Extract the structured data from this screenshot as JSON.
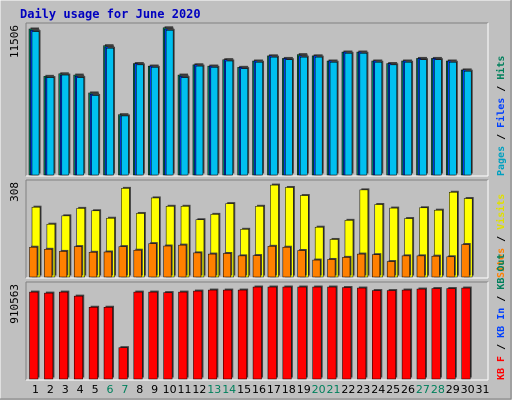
{
  "chart_data": {
    "type": "bar",
    "title": "Daily usage for June 2020",
    "categories": [
      "1",
      "2",
      "3",
      "4",
      "5",
      "6",
      "7",
      "8",
      "9",
      "10",
      "11",
      "12",
      "13",
      "14",
      "15",
      "16",
      "17",
      "18",
      "19",
      "20",
      "21",
      "22",
      "23",
      "24",
      "25",
      "26",
      "27",
      "28",
      "29",
      "30",
      "31"
    ],
    "weekend_days": [
      6,
      7,
      13,
      14,
      20,
      21,
      27,
      28
    ],
    "panels": [
      {
        "name": "hits-files-pages",
        "max_label": "11506",
        "ymax": 11506,
        "legend": [
          {
            "text": "Pages",
            "color": "#00a0c0"
          },
          {
            "text": "Files",
            "color": "#0040ff"
          },
          {
            "text": "Hits",
            "color": "#00805c"
          }
        ],
        "series": [
          {
            "name": "Hits",
            "color": "#00805c",
            "values": [
              11506,
              7800,
              8000,
              7900,
              6500,
              10200,
              4800,
              8800,
              8600,
              11600,
              7900,
              8700,
              8600,
              9100,
              8500,
              9000,
              9400,
              9200,
              9500,
              9400,
              9000,
              9700,
              9700,
              9000,
              8800,
              9000,
              9200,
              9200,
              9000,
              8300,
              0
            ]
          },
          {
            "name": "Files",
            "color": "#0040ff",
            "values": [
              11400,
              7700,
              7900,
              7800,
              6400,
              10100,
              4700,
              8800,
              8600,
              11500,
              7800,
              8700,
              8600,
              9100,
              8500,
              9000,
              9400,
              9200,
              9400,
              9400,
              9000,
              9700,
              9700,
              9000,
              8800,
              9000,
              9200,
              9200,
              9000,
              8300,
              0
            ]
          },
          {
            "name": "Pages",
            "color": "#00c0f0",
            "values": [
              11300,
              7700,
              7900,
              7700,
              6300,
              10000,
              4700,
              8700,
              8500,
              11400,
              7700,
              8600,
              8500,
              9000,
              8400,
              8900,
              9300,
              9100,
              9300,
              9300,
              8900,
              9600,
              9600,
              8900,
              8700,
              8900,
              9100,
              9100,
              8900,
              8200,
              0
            ]
          }
        ]
      },
      {
        "name": "visits-sites",
        "max_label": "308",
        "ymax": 308,
        "legend": [
          {
            "text": "Sites",
            "color": "#ff8000"
          },
          {
            "text": "Visits",
            "color": "#e0e000"
          }
        ],
        "series": [
          {
            "name": "Visits",
            "color": "#ffff00",
            "values": [
              237,
              180,
              208,
              233,
              225,
              200,
              300,
              216,
              268,
              240,
              240,
              195,
              213,
              249,
              163,
              240,
              311,
              303,
              276,
              170,
              129,
              193,
              295,
              246,
              234,
              199,
              235,
              227,
              287,
              266,
              0
            ]
          },
          {
            "name": "Sites",
            "color": "#ff8000",
            "values": [
              103,
              96,
              89,
              105,
              86,
              87,
              105,
              93,
              115,
              107,
              110,
              84,
              80,
              82,
              74,
              75,
              106,
              103,
              92,
              60,
              62,
              69,
              80,
              78,
              55,
              74,
              74,
              73,
              71,
              112,
              0
            ]
          }
        ]
      },
      {
        "name": "kbytes",
        "max_label": "910563",
        "ymax": 910563,
        "legend": [
          {
            "text": "KB F",
            "color": "#ff0000"
          },
          {
            "text": "KB In",
            "color": "#0040ff"
          },
          {
            "text": "KB Out",
            "color": "#00805c"
          }
        ],
        "series": [
          {
            "name": "KB F",
            "color": "#ff0000",
            "values": [
              870000,
              860000,
              870000,
              830000,
              720000,
              720000,
              320000,
              870000,
              870000,
              865000,
              870000,
              880000,
              890000,
              890000,
              890000,
              920000,
              920000,
              920000,
              920000,
              920000,
              920000,
              915000,
              910000,
              885000,
              885000,
              890000,
              900000,
              905000,
              905000,
              910000,
              0
            ]
          }
        ]
      }
    ]
  }
}
